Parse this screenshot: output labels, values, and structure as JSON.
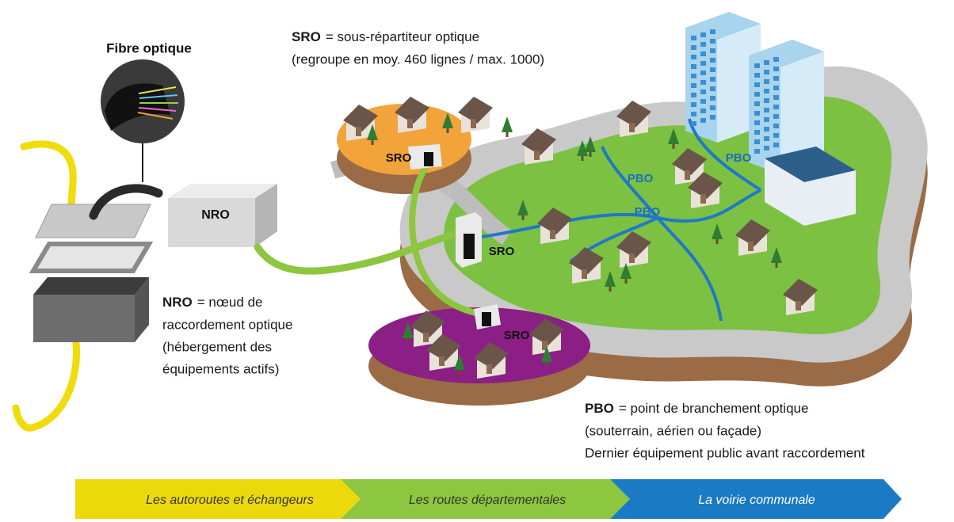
{
  "illustration": {
    "fiber_label": "Fibre optique",
    "nro_box": "NRO",
    "map_labels": [
      {
        "text": "SRO"
      },
      {
        "text": "SRO"
      },
      {
        "text": "SRO"
      },
      {
        "text": "PBO"
      },
      {
        "text": "PBO"
      },
      {
        "text": "PBO"
      }
    ]
  },
  "descriptions": [
    {
      "term": "SRO",
      "lines": [
        "= sous-répartiteur optique",
        "(regroupe en moy. 460 lignes / max. 1000)"
      ]
    },
    {
      "term": "NRO",
      "lines": [
        "= nœud de",
        "raccordement optique",
        "(hébergement des",
        "équipements actifs)"
      ]
    },
    {
      "term": "PBO",
      "lines": [
        "= point de branchement optique",
        "(souterrain, aérien ou façade)",
        "Dernier équipement public avant raccordement"
      ]
    }
  ],
  "stages": [
    "Les autoroutes et échangeurs",
    "Les routes départementales",
    "La voirie communale"
  ]
}
